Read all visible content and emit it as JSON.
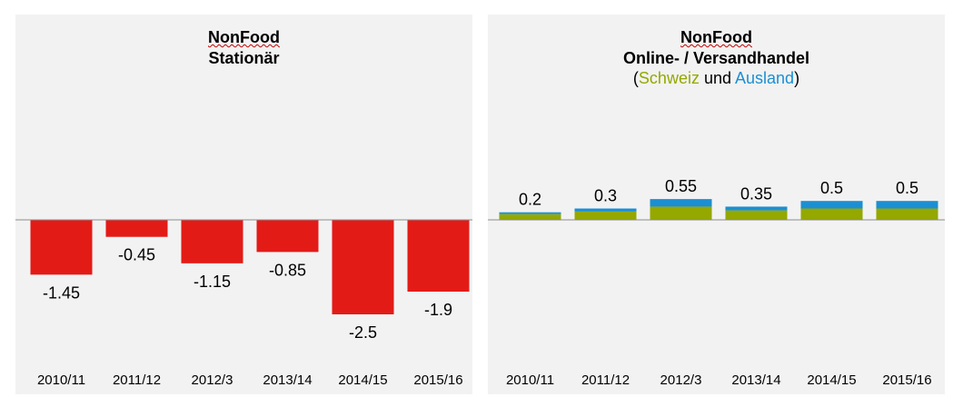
{
  "chart_data": [
    {
      "type": "bar",
      "title": "NonFood",
      "subtitle": "Stationär",
      "categories": [
        "2010/11",
        "2011/12",
        "2012/3",
        "2013/14",
        "2014/15",
        "2015/16"
      ],
      "values": [
        -1.45,
        -0.45,
        -1.15,
        -0.85,
        -2.5,
        -1.9
      ],
      "colors": {
        "bar": "#e31b17"
      },
      "xlabel": "",
      "ylabel": "",
      "ylim": [
        -2.5,
        0
      ]
    },
    {
      "type": "bar",
      "stacked": true,
      "title": "NonFood",
      "subtitle": "Online- / Versandhandel",
      "legend_text": {
        "open": "(",
        "schweiz": "Schweiz",
        "und": " und ",
        "ausland": "Ausland",
        "close": ")"
      },
      "categories": [
        "2010/11",
        "2011/12",
        "2012/3",
        "2013/14",
        "2014/15",
        "2015/16"
      ],
      "series": [
        {
          "name": "Schweiz",
          "values": [
            0.15,
            0.22,
            0.35,
            0.25,
            0.3,
            0.3
          ],
          "color": "#94a800"
        },
        {
          "name": "Ausland",
          "values": [
            0.05,
            0.08,
            0.2,
            0.1,
            0.2,
            0.2
          ],
          "color": "#1b8fd2"
        }
      ],
      "totals": [
        "0.2",
        "0.3",
        "0.55",
        "0.35",
        "0.5",
        "0.5"
      ],
      "xlabel": "",
      "ylabel": "",
      "ylim": [
        -2.5,
        0.55
      ]
    }
  ],
  "labels_left": [
    "-1.45",
    "-0.45",
    "-1.15",
    "-0.85",
    "-2.5",
    "-1.9"
  ]
}
